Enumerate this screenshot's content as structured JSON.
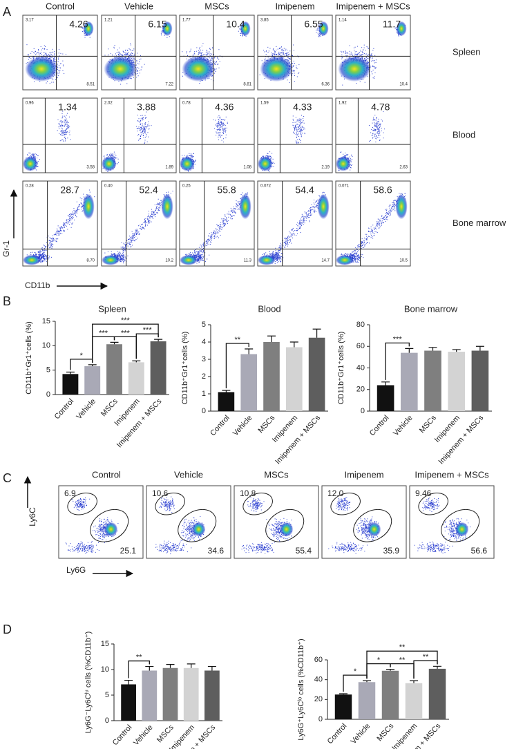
{
  "panel_labels": [
    "A",
    "B",
    "C",
    "D"
  ],
  "flow_a": {
    "columns": [
      "Control",
      "Vehicle",
      "MSCs",
      "Imipenem",
      "Imipenem + MSCs"
    ],
    "x_axis_label": "CD11b",
    "y_axis_label": "Gr-1",
    "rows": [
      {
        "label": "Spleen",
        "plots": [
          {
            "main": "4.26",
            "ul": "3.17",
            "lr": "8.51"
          },
          {
            "main": "6.15",
            "ul": "1.21",
            "lr": "7.22"
          },
          {
            "main": "10.4",
            "ul": "1.77",
            "lr": "8.81"
          },
          {
            "main": "6.55",
            "ul": "3.85",
            "lr": "6.36"
          },
          {
            "main": "11.7",
            "ul": "1.14",
            "lr": "10.4"
          }
        ]
      },
      {
        "label": "Blood",
        "plots": [
          {
            "main": "1.34",
            "ul": "0.96",
            "lr": "3.58"
          },
          {
            "main": "3.88",
            "ul": "2.02",
            "lr": "1.89"
          },
          {
            "main": "4.36",
            "ul": "0.78",
            "lr": "1.08"
          },
          {
            "main": "4.33",
            "ul": "1.59",
            "lr": "2.19"
          },
          {
            "main": "4.78",
            "ul": "1.92",
            "lr": "2.63"
          }
        ]
      },
      {
        "label": "Bone marrow",
        "plots": [
          {
            "main": "28.7",
            "ul": "0.28",
            "lr": "8.70"
          },
          {
            "main": "52.4",
            "ul": "0.40",
            "lr": "10.2"
          },
          {
            "main": "55.8",
            "ul": "0.25",
            "lr": "11.3"
          },
          {
            "main": "54.4",
            "ul": "0.072",
            "lr": "14.7"
          },
          {
            "main": "58.6",
            "ul": "0.071",
            "lr": "10.5"
          }
        ]
      }
    ]
  },
  "flow_c": {
    "columns": [
      "Control",
      "Vehicle",
      "MSCs",
      "Imipenem",
      "Imipenem + MSCs"
    ],
    "x_axis_label": "Ly6G",
    "y_axis_label": "Ly6C",
    "plots": [
      {
        "upper": "6.9",
        "lower": "25.1"
      },
      {
        "upper": "10.6",
        "lower": "34.6"
      },
      {
        "upper": "10.8",
        "lower": "55.4"
      },
      {
        "upper": "12.0",
        "lower": "35.9"
      },
      {
        "upper": "9.46",
        "lower": "56.6"
      }
    ]
  },
  "chart_data": [
    {
      "type": "bar",
      "title": "Spleen",
      "y_axis_label": "CD11b⁺Gr1⁺cells (%)",
      "categories": [
        "Control",
        "Vehicle",
        "MSCs",
        "Imipenem",
        "Imipenem + MSCs"
      ],
      "values": [
        4.2,
        5.8,
        10.3,
        6.6,
        10.9
      ],
      "errors": [
        0.4,
        0.3,
        0.4,
        0.3,
        0.4
      ],
      "colors": [
        "#111111",
        "#a9a9b6",
        "#7f7f7f",
        "#d3d3d3",
        "#5e5e5e"
      ],
      "ylim": [
        0,
        15
      ],
      "yticks": [
        0,
        5,
        10,
        15
      ],
      "significance": [
        {
          "between": [
            0,
            1
          ],
          "label": "*"
        },
        {
          "between": [
            1,
            2
          ],
          "label": "***"
        },
        {
          "between": [
            2,
            3
          ],
          "label": "***"
        },
        {
          "between": [
            3,
            4
          ],
          "label": "***"
        },
        {
          "between": [
            1,
            4
          ],
          "label": "***"
        }
      ]
    },
    {
      "type": "bar",
      "title": "Blood",
      "y_axis_label": "CD11b⁺Gr1⁺cells (%)",
      "categories": [
        "Control",
        "Vehicle",
        "MSCs",
        "Imipenem",
        "Imipenem + MSCs"
      ],
      "values": [
        1.1,
        3.3,
        4.0,
        3.7,
        4.25
      ],
      "errors": [
        0.1,
        0.3,
        0.35,
        0.3,
        0.5
      ],
      "colors": [
        "#111111",
        "#a9a9b6",
        "#7f7f7f",
        "#d3d3d3",
        "#5e5e5e"
      ],
      "ylim": [
        0,
        5
      ],
      "yticks": [
        0,
        1,
        2,
        3,
        4,
        5
      ],
      "significance": [
        {
          "between": [
            0,
            1
          ],
          "label": "**"
        }
      ]
    },
    {
      "type": "bar",
      "title": "Bone marrow",
      "y_axis_label": "CD11b⁺Gr1⁺cells (%)",
      "categories": [
        "Control",
        "Vehicle",
        "MSCs",
        "Imipenem",
        "Imipenem + MSCs"
      ],
      "values": [
        24,
        54,
        56,
        55,
        56
      ],
      "errors": [
        3,
        4,
        3,
        2,
        4
      ],
      "colors": [
        "#111111",
        "#a9a9b6",
        "#7f7f7f",
        "#d3d3d3",
        "#5e5e5e"
      ],
      "ylim": [
        0,
        80
      ],
      "yticks": [
        0,
        20,
        40,
        60,
        80
      ],
      "significance": [
        {
          "between": [
            0,
            1
          ],
          "label": "***"
        }
      ]
    },
    {
      "type": "bar",
      "y_axis_label": "Ly6G⁻Ly6Cʰⁱ cells (%CD11b⁺)",
      "categories": [
        "Control",
        "Vehicle",
        "MSCs",
        "Imipenem",
        "Imipenem + MSCs"
      ],
      "values": [
        7.1,
        9.8,
        10.3,
        10.3,
        9.8
      ],
      "errors": [
        0.8,
        0.8,
        0.7,
        0.8,
        0.8
      ],
      "colors": [
        "#111111",
        "#a9a9b6",
        "#7f7f7f",
        "#d3d3d3",
        "#5e5e5e"
      ],
      "ylim": [
        0,
        15
      ],
      "yticks": [
        0,
        5,
        10,
        15
      ],
      "significance": [
        {
          "between": [
            0,
            1
          ],
          "label": "**"
        }
      ]
    },
    {
      "type": "bar",
      "y_axis_label": "Ly6G⁺Ly6Cˡᵒ cells (%CD11b⁺)",
      "categories": [
        "Control",
        "Vehicle",
        "MSCs",
        "Imipenem",
        "Imipenem + MSCs"
      ],
      "values": [
        25,
        37.5,
        49,
        36.5,
        51
      ],
      "errors": [
        0.8,
        1.5,
        1.5,
        2.5,
        2.5
      ],
      "colors": [
        "#111111",
        "#a9a9b6",
        "#7f7f7f",
        "#d3d3d3",
        "#5e5e5e"
      ],
      "ylim": [
        0,
        60
      ],
      "yticks": [
        0,
        20,
        40,
        60
      ],
      "significance": [
        {
          "between": [
            0,
            1
          ],
          "label": "*"
        },
        {
          "between": [
            1,
            2
          ],
          "label": "*"
        },
        {
          "between": [
            2,
            3
          ],
          "label": "**"
        },
        {
          "between": [
            3,
            4
          ],
          "label": "**"
        },
        {
          "between": [
            1,
            4
          ],
          "label": "**"
        }
      ]
    }
  ]
}
